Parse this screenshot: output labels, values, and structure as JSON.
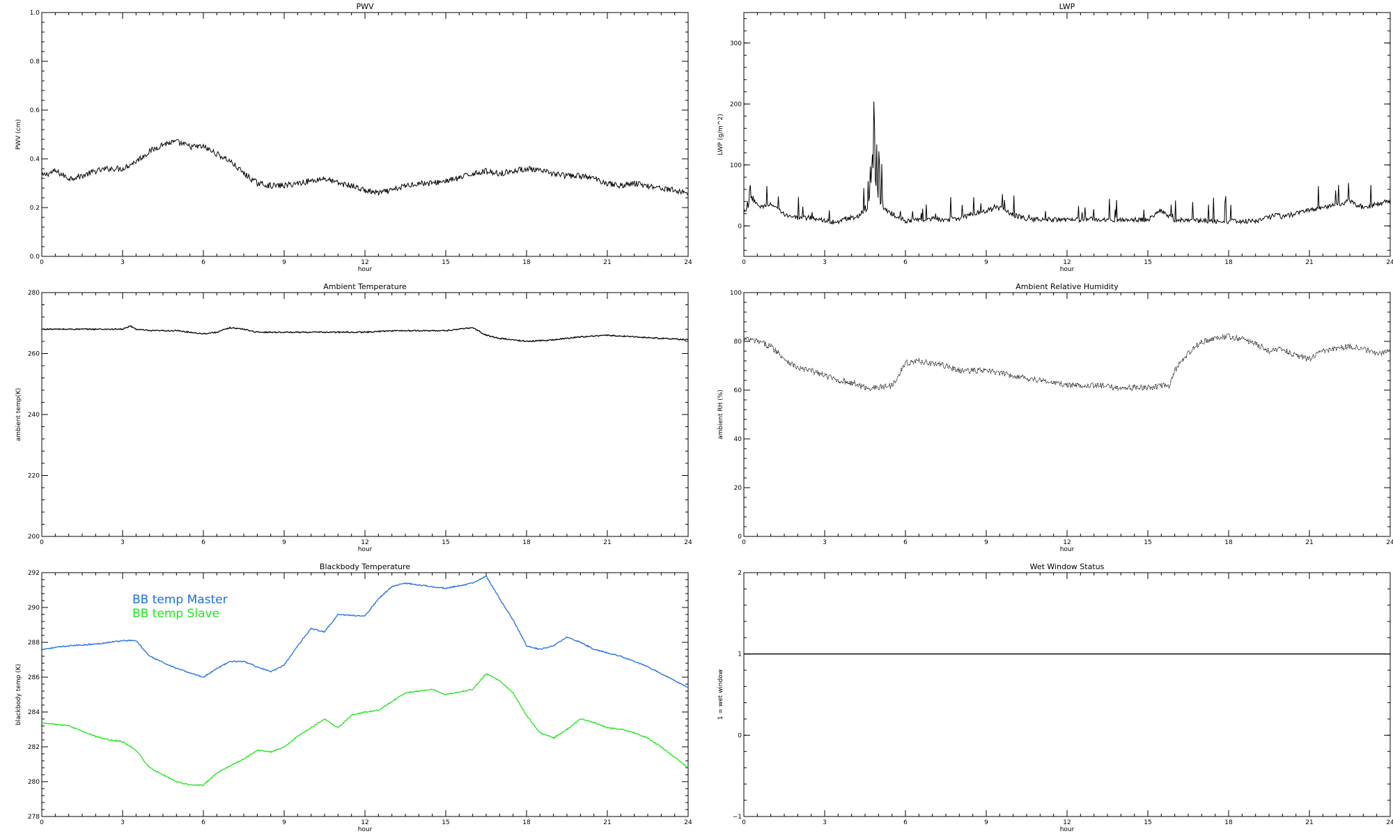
{
  "chart_data": [
    {
      "type": "line",
      "title": "PWV",
      "xlabel": "hour",
      "ylabel": "PWV (cm)",
      "xlim": [
        0,
        24
      ],
      "ylim": [
        0.0,
        1.0
      ],
      "xticks": [
        0,
        3,
        6,
        9,
        12,
        15,
        18,
        21,
        24
      ],
      "yticks": [
        0.0,
        0.2,
        0.4,
        0.6,
        0.8,
        1.0
      ],
      "ytick_labels": [
        "0.0",
        "0.2",
        "0.4",
        "0.6",
        "0.8",
        "1.0"
      ],
      "grid": false,
      "series": [
        {
          "color": "#000000",
          "style": "noisy",
          "x": [
            0,
            0.5,
            1,
            1.5,
            2,
            2.5,
            3,
            3.5,
            4,
            4.5,
            5,
            5.5,
            6,
            6.5,
            7,
            7.5,
            8,
            8.5,
            9,
            9.5,
            10,
            10.5,
            11,
            11.5,
            12,
            12.5,
            13,
            13.5,
            14,
            14.5,
            15,
            15.5,
            16,
            16.5,
            17,
            17.5,
            18,
            18.5,
            19,
            19.5,
            20,
            20.5,
            21,
            21.5,
            22,
            22.5,
            23,
            23.5,
            24
          ],
          "values": [
            0.33,
            0.35,
            0.32,
            0.33,
            0.35,
            0.36,
            0.36,
            0.39,
            0.43,
            0.46,
            0.47,
            0.45,
            0.45,
            0.42,
            0.39,
            0.34,
            0.3,
            0.29,
            0.29,
            0.3,
            0.31,
            0.32,
            0.3,
            0.29,
            0.27,
            0.26,
            0.27,
            0.29,
            0.3,
            0.3,
            0.31,
            0.32,
            0.34,
            0.35,
            0.34,
            0.35,
            0.36,
            0.35,
            0.34,
            0.33,
            0.33,
            0.32,
            0.3,
            0.29,
            0.3,
            0.29,
            0.28,
            0.27,
            0.26
          ]
        }
      ]
    },
    {
      "type": "line",
      "title": "LWP",
      "xlabel": "hour",
      "ylabel": "LWP (g/m^2)",
      "xlim": [
        0,
        24
      ],
      "ylim": [
        -50,
        350
      ],
      "xticks": [
        0,
        3,
        6,
        9,
        12,
        15,
        18,
        21,
        24
      ],
      "yticks": [
        0,
        100,
        200,
        300
      ],
      "ytick_labels": [
        "0",
        "100",
        "200",
        "300"
      ],
      "grid": false,
      "series": [
        {
          "color": "#000000",
          "style": "spiky",
          "x": [
            0,
            0.3,
            0.6,
            1,
            1.5,
            2,
            2.5,
            3,
            3.5,
            3.8,
            4.2,
            4.6,
            4.8,
            5,
            5.3,
            5.6,
            6,
            6.5,
            7,
            7.5,
            8,
            8.5,
            9,
            9.5,
            10,
            10.5,
            11,
            12,
            13,
            14,
            15,
            15.5,
            16,
            17,
            18,
            19,
            19.8,
            20,
            20.5,
            21,
            21.5,
            22,
            22.5,
            23,
            23.5,
            24
          ],
          "values": [
            20,
            45,
            30,
            35,
            20,
            12,
            14,
            8,
            5,
            12,
            15,
            30,
            95,
            40,
            25,
            18,
            8,
            10,
            12,
            10,
            12,
            20,
            25,
            30,
            18,
            12,
            10,
            10,
            11,
            10,
            10,
            25,
            10,
            8,
            7,
            8,
            18,
            15,
            20,
            25,
            30,
            35,
            40,
            30,
            35,
            42
          ]
        }
      ]
    },
    {
      "type": "line",
      "title": "Ambient Temperature",
      "xlabel": "hour",
      "ylabel": "ambient temp(K)",
      "xlim": [
        0,
        24
      ],
      "ylim": [
        200,
        280
      ],
      "xticks": [
        0,
        3,
        6,
        9,
        12,
        15,
        18,
        21,
        24
      ],
      "yticks": [
        200,
        220,
        240,
        260,
        280
      ],
      "ytick_labels": [
        "200",
        "220",
        "240",
        "260",
        "280"
      ],
      "grid": false,
      "series": [
        {
          "color": "#000000",
          "style": "line",
          "x": [
            0,
            1,
            2,
            3,
            3.3,
            3.5,
            4,
            5,
            6,
            6.5,
            7,
            7.5,
            8,
            9,
            10,
            11,
            12,
            13,
            14,
            15,
            16,
            16.5,
            17,
            18,
            19,
            20,
            21,
            22,
            23,
            24
          ],
          "values": [
            268,
            268,
            268,
            268,
            269,
            268,
            267.5,
            267.5,
            266.5,
            267,
            268.5,
            268,
            267,
            267,
            267,
            267,
            267,
            267.5,
            267.5,
            267.5,
            268.5,
            266,
            265,
            264,
            264.5,
            265.5,
            266,
            265.5,
            265,
            264.5
          ]
        }
      ]
    },
    {
      "type": "line",
      "title": "Ambient Relative Humidity",
      "xlabel": "hour",
      "ylabel": "ambient RH (%)",
      "xlim": [
        0,
        24
      ],
      "ylim": [
        0,
        100
      ],
      "xticks": [
        0,
        3,
        6,
        9,
        12,
        15,
        18,
        21,
        24
      ],
      "yticks": [
        0,
        20,
        40,
        60,
        80,
        100
      ],
      "ytick_labels": [
        "0",
        "20",
        "40",
        "60",
        "80",
        "100"
      ],
      "grid": false,
      "series": [
        {
          "color": "#000000",
          "style": "dotted",
          "x": [
            0,
            0.5,
            1,
            1.5,
            2,
            2.5,
            3,
            3.5,
            4,
            4.5,
            5,
            5.5,
            6,
            6.5,
            7,
            7.5,
            8,
            8.5,
            9,
            10,
            11,
            12,
            13,
            14,
            15,
            15.8,
            16,
            16.5,
            17,
            17.5,
            18,
            18.5,
            19,
            19.5,
            20,
            20.5,
            21,
            21.5,
            22,
            22.5,
            23,
            23.5,
            24
          ],
          "values": [
            81,
            80,
            78,
            73,
            69,
            68,
            66,
            64,
            63,
            61,
            61,
            62,
            71,
            72,
            71,
            70,
            68,
            68,
            68,
            66,
            64,
            62,
            62,
            61,
            61,
            62,
            68,
            75,
            80,
            81,
            82,
            81,
            79,
            76,
            77,
            74,
            73,
            76,
            77,
            78,
            77,
            75,
            76
          ]
        }
      ]
    },
    {
      "type": "line",
      "title": "Blackbody Temperature",
      "xlabel": "hour",
      "ylabel": "blackbody temp (K)",
      "xlim": [
        0,
        24
      ],
      "ylim": [
        278,
        292
      ],
      "xticks": [
        0,
        3,
        6,
        9,
        12,
        15,
        18,
        21,
        24
      ],
      "yticks": [
        278,
        280,
        282,
        284,
        286,
        288,
        290,
        292
      ],
      "ytick_labels": [
        "278",
        "280",
        "282",
        "284",
        "286",
        "288",
        "290",
        "292"
      ],
      "grid": false,
      "legend_position": "top-left",
      "series": [
        {
          "name": "BB temp Master",
          "color": "#1e6ee6",
          "style": "line",
          "x": [
            0,
            1,
            2,
            3,
            3.5,
            4,
            5,
            6,
            6.5,
            7,
            7.5,
            8,
            8.5,
            9,
            9.5,
            10,
            10.5,
            11,
            12,
            12.5,
            13,
            13.5,
            14,
            14.5,
            15,
            16,
            16.5,
            17,
            17.5,
            18,
            18.5,
            19,
            19.5,
            20,
            20.5,
            21,
            21.5,
            22,
            22.5,
            23,
            23.5,
            24
          ],
          "values": [
            287.6,
            287.8,
            287.9,
            288.1,
            288.1,
            287.2,
            286.5,
            286,
            286.5,
            286.9,
            286.9,
            286.6,
            286.3,
            286.7,
            287.8,
            288.8,
            288.6,
            289.6,
            289.5,
            290.5,
            291.2,
            291.4,
            291.3,
            291.2,
            291.1,
            291.4,
            291.8,
            290.5,
            289.3,
            287.8,
            287.6,
            287.8,
            288.3,
            288,
            287.6,
            287.4,
            287.2,
            286.9,
            286.6,
            286.2,
            285.8,
            285.4
          ]
        },
        {
          "name": "BB temp Slave",
          "color": "#1ee61e",
          "style": "line",
          "x": [
            0,
            1,
            2,
            2.5,
            3,
            3.5,
            4,
            5,
            5.5,
            6,
            6.5,
            7,
            7.5,
            8,
            8.5,
            9,
            9.5,
            10,
            10.5,
            11,
            11.5,
            12,
            12.5,
            13,
            13.5,
            14,
            14.5,
            15,
            16,
            16.5,
            17,
            17.5,
            18,
            18.5,
            19,
            19.5,
            20,
            20.5,
            21,
            21.5,
            22,
            22.5,
            23,
            23.5,
            24
          ],
          "values": [
            283.4,
            283.2,
            282.6,
            282.4,
            282.3,
            281.8,
            280.8,
            280,
            279.8,
            279.8,
            280.5,
            280.9,
            281.3,
            281.8,
            281.7,
            282,
            282.6,
            283.1,
            283.6,
            283.1,
            283.8,
            284,
            284.1,
            284.6,
            285.1,
            285.2,
            285.3,
            285,
            285.3,
            286.2,
            285.8,
            285.1,
            283.8,
            282.8,
            282.5,
            283,
            283.6,
            283.4,
            283.1,
            283,
            282.8,
            282.5,
            282,
            281.4,
            280.8
          ]
        }
      ]
    },
    {
      "type": "line",
      "title": "Wet Window Status",
      "xlabel": "hour",
      "ylabel": "1 = wet window",
      "xlim": [
        0,
        24
      ],
      "ylim": [
        -1,
        2
      ],
      "xticks": [
        0,
        3,
        6,
        9,
        12,
        15,
        18,
        21,
        24
      ],
      "yticks": [
        -1,
        0,
        1,
        2
      ],
      "ytick_labels": [
        "−1",
        "0",
        "1",
        "2"
      ],
      "grid": false,
      "series": [
        {
          "color": "#000000",
          "style": "line",
          "x": [
            0,
            24
          ],
          "values": [
            1,
            1
          ]
        }
      ]
    }
  ]
}
